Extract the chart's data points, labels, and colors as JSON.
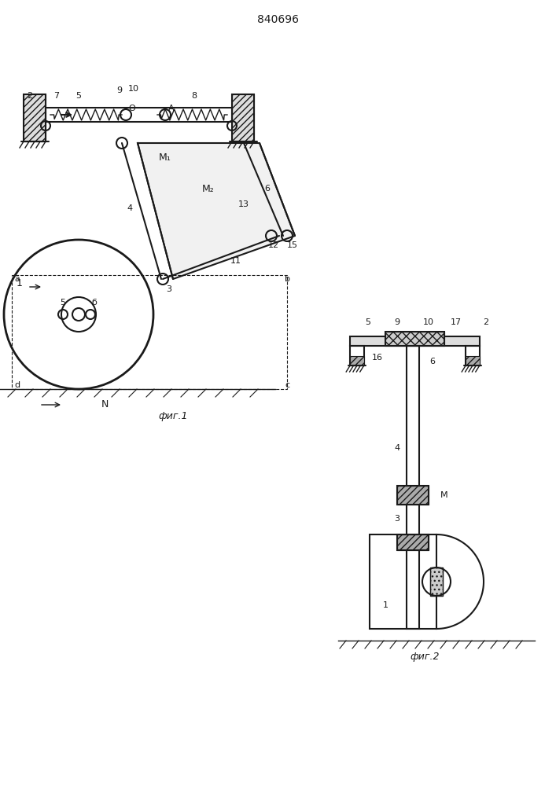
{
  "title": "840696",
  "title_fontsize": 10,
  "fig1_label": "фиг.1",
  "fig2_label": "фиг.2",
  "background_color": "#ffffff",
  "line_color": "#1a1a1a",
  "hatch_color": "#1a1a1a",
  "label_fontsize": 8
}
